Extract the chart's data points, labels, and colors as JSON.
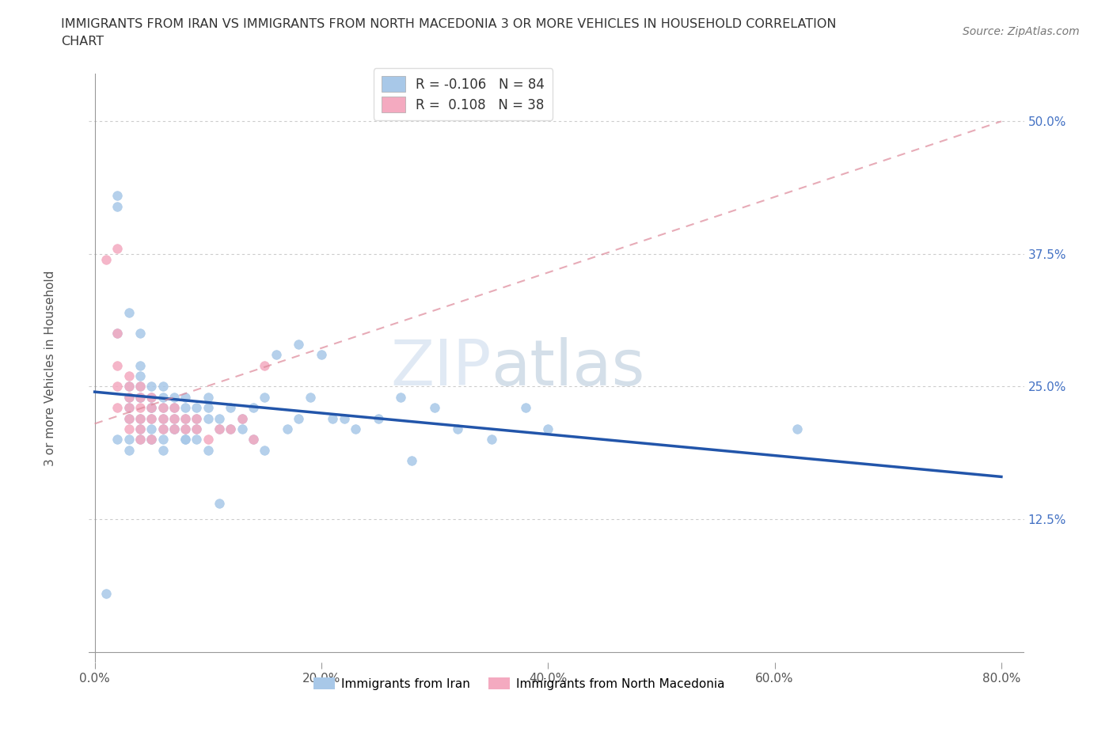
{
  "title_line1": "IMMIGRANTS FROM IRAN VS IMMIGRANTS FROM NORTH MACEDONIA 3 OR MORE VEHICLES IN HOUSEHOLD CORRELATION",
  "title_line2": "CHART",
  "source_text": "Source: ZipAtlas.com",
  "ylabel": "3 or more Vehicles in Household",
  "xlabel_ticks": [
    "0.0%",
    "20.0%",
    "40.0%",
    "60.0%",
    "80.0%"
  ],
  "xlabel_vals": [
    0.0,
    0.2,
    0.4,
    0.6,
    0.8
  ],
  "ytick_vals": [
    0.0,
    0.125,
    0.25,
    0.375,
    0.5
  ],
  "ytick_labels": [
    "",
    "12.5%",
    "25.0%",
    "37.5%",
    "50.0%"
  ],
  "xlim": [
    -0.005,
    0.82
  ],
  "ylim": [
    -0.01,
    0.545
  ],
  "iran_color": "#a8c8e8",
  "iran_line_color": "#2255aa",
  "macedonia_color": "#f4aac0",
  "macedonia_line_color": "#dd8899",
  "watermark_zip": "ZIP",
  "watermark_atlas": "atlas",
  "iran_line_x0": 0.0,
  "iran_line_y0": 0.245,
  "iran_line_x1": 0.8,
  "iran_line_y1": 0.165,
  "mac_line_x0": 0.0,
  "mac_line_y0": 0.215,
  "mac_line_x1": 0.8,
  "mac_line_y1": 0.5,
  "legend1_label": "R = -0.106   N = 84",
  "legend2_label": "R =  0.108   N = 38",
  "bottom_legend1": "Immigrants from Iran",
  "bottom_legend2": "Immigrants from North Macedonia",
  "iran_x": [
    0.02,
    0.02,
    0.01,
    0.02,
    0.03,
    0.03,
    0.04,
    0.04,
    0.04,
    0.04,
    0.03,
    0.03,
    0.03,
    0.04,
    0.04,
    0.04,
    0.05,
    0.05,
    0.05,
    0.05,
    0.05,
    0.05,
    0.05,
    0.06,
    0.06,
    0.06,
    0.06,
    0.06,
    0.06,
    0.07,
    0.07,
    0.07,
    0.07,
    0.08,
    0.08,
    0.08,
    0.08,
    0.08,
    0.09,
    0.09,
    0.09,
    0.1,
    0.1,
    0.1,
    0.11,
    0.11,
    0.12,
    0.12,
    0.13,
    0.13,
    0.14,
    0.14,
    0.15,
    0.15,
    0.16,
    0.17,
    0.18,
    0.18,
    0.19,
    0.2,
    0.21,
    0.22,
    0.23,
    0.25,
    0.27,
    0.28,
    0.3,
    0.32,
    0.35,
    0.38,
    0.4,
    0.62,
    0.02,
    0.03,
    0.03,
    0.04,
    0.04,
    0.05,
    0.06,
    0.07,
    0.08,
    0.09,
    0.1,
    0.11
  ],
  "iran_y": [
    0.43,
    0.42,
    0.055,
    0.3,
    0.32,
    0.25,
    0.3,
    0.26,
    0.27,
    0.24,
    0.22,
    0.24,
    0.23,
    0.25,
    0.24,
    0.22,
    0.25,
    0.24,
    0.23,
    0.22,
    0.21,
    0.23,
    0.2,
    0.25,
    0.24,
    0.23,
    0.22,
    0.21,
    0.2,
    0.24,
    0.23,
    0.22,
    0.21,
    0.24,
    0.23,
    0.22,
    0.21,
    0.2,
    0.23,
    0.22,
    0.21,
    0.24,
    0.23,
    0.22,
    0.22,
    0.21,
    0.23,
    0.21,
    0.22,
    0.21,
    0.23,
    0.2,
    0.24,
    0.19,
    0.28,
    0.21,
    0.29,
    0.22,
    0.24,
    0.28,
    0.22,
    0.22,
    0.21,
    0.22,
    0.24,
    0.18,
    0.23,
    0.21,
    0.2,
    0.23,
    0.21,
    0.21,
    0.2,
    0.2,
    0.19,
    0.21,
    0.2,
    0.2,
    0.19,
    0.21,
    0.2,
    0.2,
    0.19,
    0.14
  ],
  "macedonia_x": [
    0.01,
    0.02,
    0.02,
    0.02,
    0.02,
    0.02,
    0.03,
    0.03,
    0.03,
    0.03,
    0.03,
    0.03,
    0.04,
    0.04,
    0.04,
    0.04,
    0.04,
    0.04,
    0.05,
    0.05,
    0.05,
    0.05,
    0.06,
    0.06,
    0.06,
    0.07,
    0.07,
    0.07,
    0.08,
    0.08,
    0.09,
    0.09,
    0.1,
    0.11,
    0.12,
    0.13,
    0.14,
    0.15
  ],
  "macedonia_y": [
    0.37,
    0.38,
    0.3,
    0.27,
    0.25,
    0.23,
    0.26,
    0.25,
    0.24,
    0.23,
    0.22,
    0.21,
    0.25,
    0.24,
    0.23,
    0.22,
    0.21,
    0.2,
    0.24,
    0.23,
    0.22,
    0.2,
    0.23,
    0.22,
    0.21,
    0.23,
    0.22,
    0.21,
    0.22,
    0.21,
    0.22,
    0.21,
    0.2,
    0.21,
    0.21,
    0.22,
    0.2,
    0.27
  ]
}
